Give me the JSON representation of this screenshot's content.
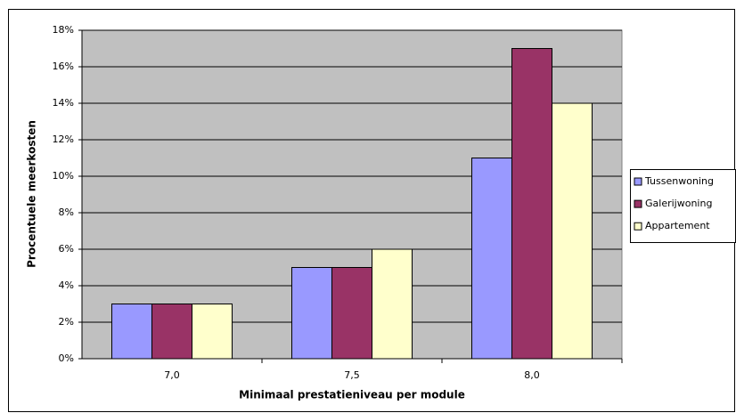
{
  "chart_data": {
    "type": "bar",
    "xlabel": "Minimaal prestatieniveau per module",
    "ylabel": "Procentuele meerkosten",
    "categories": [
      "7,0",
      "7,5",
      "8,0"
    ],
    "series": [
      {
        "name": "Tussenwoning",
        "color": "#9999ff",
        "values": [
          3,
          5,
          11
        ]
      },
      {
        "name": "Galerijwoning",
        "color": "#993366",
        "values": [
          3,
          5,
          17
        ]
      },
      {
        "name": "Appartement",
        "color": "#ffffcc",
        "values": [
          3,
          6,
          14
        ]
      }
    ],
    "ylim": [
      0,
      18
    ],
    "yticks": [
      {
        "value": 0,
        "label": "0%"
      },
      {
        "value": 2,
        "label": "2%"
      },
      {
        "value": 4,
        "label": "4%"
      },
      {
        "value": 6,
        "label": "6%"
      },
      {
        "value": 8,
        "label": "8%"
      },
      {
        "value": 10,
        "label": "10%"
      },
      {
        "value": 12,
        "label": "12%"
      },
      {
        "value": 14,
        "label": "14%"
      },
      {
        "value": 16,
        "label": "16%"
      },
      {
        "value": 18,
        "label": "18%"
      }
    ],
    "grid": true,
    "legend": "right"
  }
}
